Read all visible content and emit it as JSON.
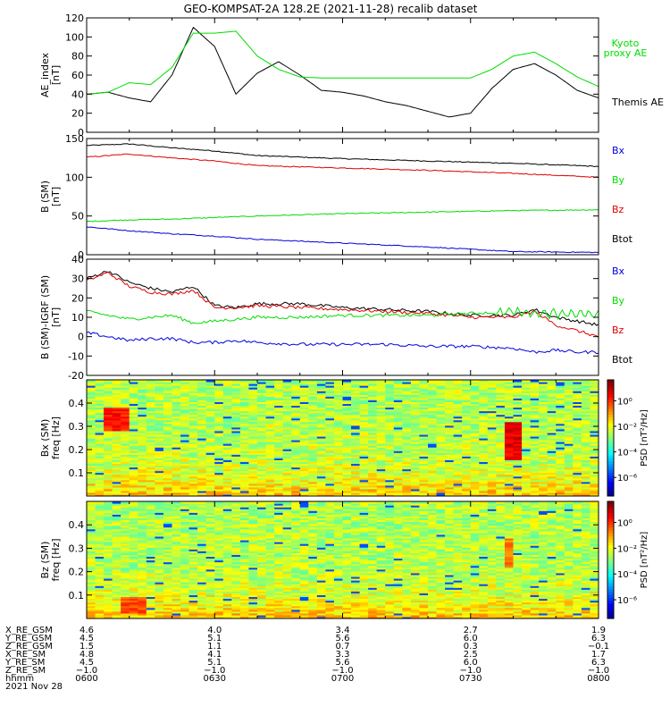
{
  "title": "GEO-KOMPSAT-2A 128.2E (2021-11-28) recalib dataset",
  "chart_data": [
    {
      "type": "line",
      "ylabel": [
        "AE_index",
        "[nT]"
      ],
      "ylim": [
        0,
        120
      ],
      "yticks": [
        0,
        20,
        40,
        60,
        80,
        100,
        120
      ],
      "series": [
        {
          "name": "Themis AE",
          "color": "#000000",
          "x": [
            0,
            5,
            10,
            15,
            20,
            25,
            30,
            35,
            40,
            45,
            50,
            55,
            60,
            65,
            70,
            75,
            80,
            85,
            90,
            95,
            100,
            105,
            110,
            115,
            120
          ],
          "y": [
            40,
            42,
            36,
            32,
            60,
            110,
            90,
            40,
            62,
            74,
            60,
            44,
            42,
            38,
            32,
            28,
            22,
            16,
            20,
            46,
            66,
            72,
            60,
            44,
            36
          ]
        },
        {
          "name": "Kyoto proxy AE",
          "color": "#00dd00",
          "x": [
            0,
            5,
            10,
            15,
            20,
            25,
            30,
            35,
            40,
            45,
            50,
            55,
            60,
            65,
            70,
            75,
            80,
            85,
            90,
            95,
            100,
            105,
            110,
            115,
            120
          ],
          "y": [
            40,
            42,
            52,
            50,
            68,
            104,
            104,
            106,
            80,
            66,
            58,
            57,
            57,
            57,
            57,
            57,
            57,
            57,
            57,
            66,
            80,
            84,
            72,
            58,
            48
          ]
        }
      ]
    },
    {
      "type": "line",
      "ylabel": [
        "B (SM)",
        "[nT]"
      ],
      "ylim": [
        0,
        150
      ],
      "yticks": [
        0,
        50,
        100,
        150
      ],
      "legend": [
        "Bx",
        "By",
        "Bz",
        "Btot"
      ],
      "series": [
        {
          "name": "Btot",
          "color": "#000000",
          "x": [
            0,
            10,
            20,
            30,
            40,
            60,
            80,
            100,
            120
          ],
          "y": [
            141,
            143,
            138,
            134,
            128,
            124,
            121,
            118,
            114
          ]
        },
        {
          "name": "Bz",
          "color": "#dd0000",
          "x": [
            0,
            10,
            20,
            30,
            40,
            60,
            80,
            100,
            120
          ],
          "y": [
            126,
            130,
            125,
            121,
            115,
            112,
            109,
            105,
            100
          ]
        },
        {
          "name": "By",
          "color": "#00dd00",
          "x": [
            0,
            10,
            20,
            30,
            40,
            60,
            80,
            100,
            120
          ],
          "y": [
            43,
            45,
            46,
            48,
            50,
            53,
            55,
            57,
            58
          ]
        },
        {
          "name": "Bx",
          "color": "#0000dd",
          "x": [
            0,
            10,
            20,
            30,
            40,
            60,
            80,
            100,
            120
          ],
          "y": [
            36,
            31,
            27,
            24,
            20,
            15,
            10,
            4,
            3
          ]
        }
      ]
    },
    {
      "type": "line",
      "ylabel": [
        "B (SM)-IGRF (SM)",
        "[nT]"
      ],
      "ylim": [
        -20,
        40
      ],
      "yticks": [
        -20,
        -10,
        0,
        10,
        20,
        30,
        40
      ],
      "legend": [
        "Bx",
        "By",
        "Bz",
        "Btot"
      ],
      "series": [
        {
          "name": "Btot",
          "color": "#000000",
          "x": [
            0,
            5,
            10,
            15,
            20,
            25,
            30,
            35,
            40,
            50,
            60,
            70,
            80,
            90,
            100,
            105,
            110,
            115,
            120
          ],
          "y": [
            30,
            34,
            28,
            25,
            23,
            26,
            16,
            15,
            17,
            17,
            15,
            14,
            13,
            11,
            11,
            14,
            10,
            8,
            6
          ]
        },
        {
          "name": "Bz",
          "color": "#dd0000",
          "x": [
            0,
            5,
            10,
            15,
            20,
            25,
            30,
            35,
            40,
            50,
            60,
            70,
            80,
            90,
            100,
            105,
            110,
            115,
            120
          ],
          "y": [
            29,
            33,
            26,
            23,
            22,
            24,
            15,
            15,
            16,
            15,
            14,
            13,
            12,
            10,
            10,
            13,
            6,
            3,
            0
          ]
        },
        {
          "name": "By",
          "color": "#00dd00",
          "x": [
            0,
            5,
            10,
            15,
            20,
            25,
            30,
            35,
            40,
            50,
            60,
            70,
            80,
            90,
            100,
            105,
            110,
            115,
            120
          ],
          "y": [
            13,
            11,
            9,
            10,
            11,
            7,
            8,
            9,
            10,
            10,
            11,
            11,
            11,
            12,
            13,
            12,
            12,
            12,
            11
          ]
        },
        {
          "name": "Bx",
          "color": "#0000dd",
          "x": [
            0,
            5,
            10,
            15,
            20,
            25,
            30,
            35,
            40,
            50,
            60,
            70,
            80,
            90,
            100,
            105,
            110,
            115,
            120
          ],
          "y": [
            2,
            0,
            -2,
            -1,
            -1,
            -3,
            -3,
            -2,
            -3,
            -4,
            -4,
            -4,
            -5,
            -5,
            -6,
            -8,
            -7,
            -8,
            -8
          ]
        }
      ]
    },
    {
      "type": "heatmap",
      "ylabel": [
        "Bx (SM)",
        "freq [Hz]"
      ],
      "ylim": [
        0,
        0.5
      ],
      "yticks": [
        0.1,
        0.2,
        0.3,
        0.4
      ],
      "colorbar": {
        "label": "PSD [nT²/Hz]",
        "ticks": [
          "10⁰",
          "10⁻²",
          "10⁻⁴",
          "10⁻⁶"
        ]
      },
      "features": [
        {
          "t": [
            4,
            10
          ],
          "f": [
            0.28,
            0.38
          ],
          "level": 0.85
        },
        {
          "t": [
            98,
            101
          ],
          "f": [
            0.16,
            0.32
          ],
          "level": 0.9
        }
      ]
    },
    {
      "type": "heatmap",
      "ylabel": [
        "Bz (SM)",
        "freq [Hz]"
      ],
      "ylim": [
        0,
        0.5
      ],
      "yticks": [
        0.1,
        0.2,
        0.3,
        0.4
      ],
      "colorbar": {
        "label": "PSD [nT²/Hz]",
        "ticks": [
          "10⁰",
          "10⁻²",
          "10⁻⁴",
          "10⁻⁶"
        ]
      },
      "features": [
        {
          "t": [
            8,
            14
          ],
          "f": [
            0.02,
            0.09
          ],
          "level": 0.8
        },
        {
          "t": [
            98,
            100
          ],
          "f": [
            0.22,
            0.34
          ],
          "level": 0.75
        }
      ]
    }
  ],
  "ephemeris": {
    "labels": [
      "X_RE_GSM",
      "Y_RE_GSM",
      "Z_RE_GSM",
      "X_RE_SM",
      "Y_RE_SM",
      "Z_RE_SM",
      "hhmm",
      "2021 Nov 28"
    ],
    "columns": [
      [
        "4.6",
        "4.5",
        "1.5",
        "4.8",
        "4.5",
        "−1.0",
        "0600"
      ],
      [
        "4.0",
        "5.1",
        "1.1",
        "4.1",
        "5.1",
        "−1.0",
        "0630"
      ],
      [
        "3.4",
        "5.6",
        "0.7",
        "3.3",
        "5.6",
        "−1.0",
        "0700"
      ],
      [
        "2.7",
        "6.0",
        "0.3",
        "2.5",
        "6.0",
        "−1.0",
        "0730"
      ],
      [
        "1.9",
        "6.3",
        "−0.1",
        "1.7",
        "6.3",
        "−1.0",
        "0800"
      ]
    ]
  }
}
